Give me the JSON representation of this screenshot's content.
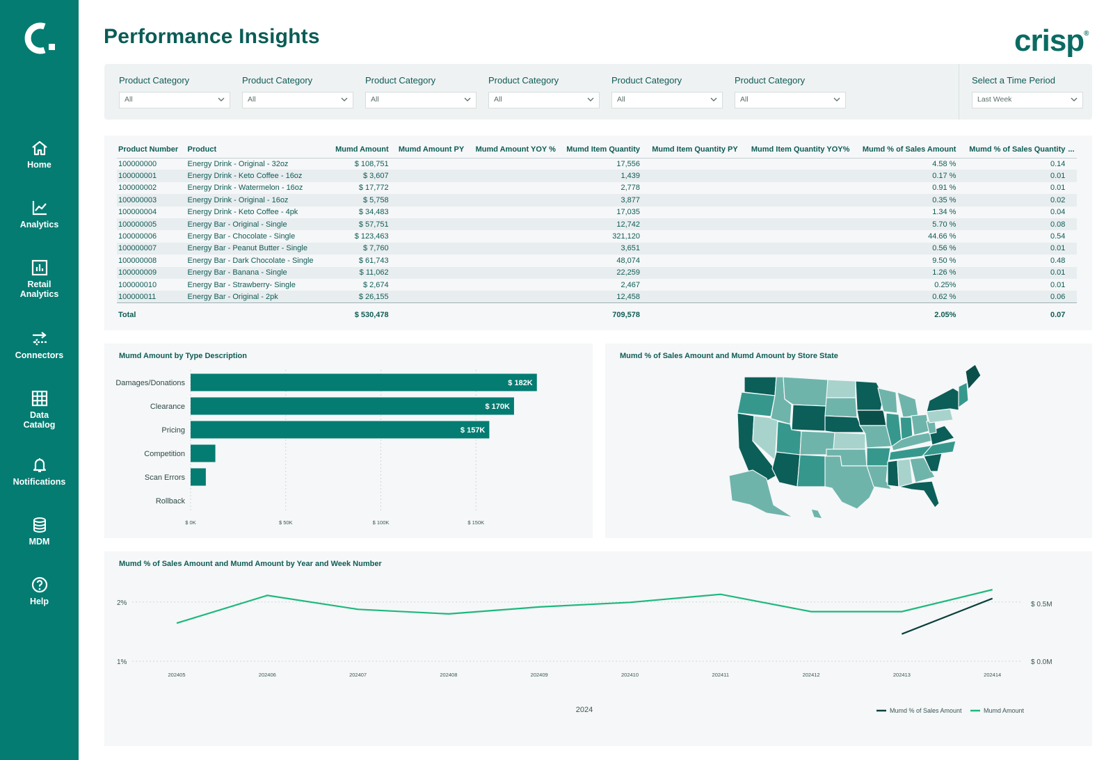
{
  "sidebar": {
    "items": [
      {
        "label": "Home"
      },
      {
        "label": "Analytics"
      },
      {
        "label": "Retail\nAnalytics"
      },
      {
        "label": "Connectors"
      },
      {
        "label": "Data\nCatalog"
      },
      {
        "label": "Notifications"
      },
      {
        "label": "MDM"
      },
      {
        "label": "Help"
      }
    ]
  },
  "header": {
    "title": "Performance Insights",
    "brand": "crisp",
    "brand_mark": "®"
  },
  "filters": [
    {
      "label": "Product Category",
      "value": "All"
    },
    {
      "label": "Product Category",
      "value": "All"
    },
    {
      "label": "Product Category",
      "value": "All"
    },
    {
      "label": "Product Category",
      "value": "All"
    },
    {
      "label": "Product Category",
      "value": "All"
    },
    {
      "label": "Product Category",
      "value": "All"
    }
  ],
  "time_filter": {
    "label": "Select a Time Period",
    "value": "Last Week"
  },
  "table": {
    "columns": [
      "Product Number",
      "Product",
      "Mumd Amount",
      "Mumd Amount PY",
      "Mumd Amount YOY %",
      "Mumd Item Quantity",
      "Mumd Item Quantity PY",
      "Mumd Item Quantity YOY%",
      "Mumd % of Sales Amount",
      "Mumd % of Sales Quantity",
      "..."
    ],
    "rows": [
      [
        "100000000",
        "Energy Drink - Original - 32oz",
        "$ 108,751",
        "",
        "",
        "17,556",
        "",
        "",
        "4.58 %",
        "0.14"
      ],
      [
        "100000001",
        "Energy Drink - Keto Coffee - 16oz",
        "$ 3,607",
        "",
        "",
        "1,439",
        "",
        "",
        "0.17 %",
        "0.01"
      ],
      [
        "100000002",
        "Energy Drink - Watermelon - 16oz",
        "$ 17,772",
        "",
        "",
        "2,778",
        "",
        "",
        "0.91 %",
        "0.01"
      ],
      [
        "100000003",
        "Energy Drink - Original - 16oz",
        "$ 5,758",
        "",
        "",
        "3,877",
        "",
        "",
        "0.35 %",
        "0.02"
      ],
      [
        "100000004",
        "Energy Drink - Keto Coffee - 4pk",
        "$ 34,483",
        "",
        "",
        "17,035",
        "",
        "",
        "1.34 %",
        "0.04"
      ],
      [
        "100000005",
        "Energy Bar - Original - Single",
        "$ 57,751",
        "",
        "",
        "12,742",
        "",
        "",
        "5.70 %",
        "0.08"
      ],
      [
        "100000006",
        "Energy Bar - Chocolate - Single",
        "$ 123,463",
        "",
        "",
        "321,120",
        "",
        "",
        "44.66 %",
        "0.54"
      ],
      [
        "100000007",
        "Energy Bar - Peanut Butter - Single",
        "$ 7,760",
        "",
        "",
        "3,651",
        "",
        "",
        "0.56 %",
        "0.01"
      ],
      [
        "100000008",
        "Energy Bar - Dark Chocolate - Single",
        "$ 61,743",
        "",
        "",
        "48,074",
        "",
        "",
        "9.50 %",
        "0.48"
      ],
      [
        "100000009",
        "Energy Bar - Banana - Single",
        "$ 11,062",
        "",
        "",
        "22,259",
        "",
        "",
        "1.26 %",
        "0.01"
      ],
      [
        "100000010",
        "Energy Bar - Strawberry- Single",
        "$ 2,674",
        "",
        "",
        "2,467",
        "",
        "",
        "0.25%",
        "0.01"
      ],
      [
        "100000011",
        "Energy Bar - Original - 2pk",
        "$ 26,155",
        "",
        "",
        "12,458",
        "",
        "",
        "0.62 %",
        "0.06"
      ]
    ],
    "total": {
      "label": "Total",
      "amount": "$ 530,478",
      "quantity": "709,578",
      "pct_amount": "2.05%",
      "pct_qty": "0.07"
    }
  },
  "map": {
    "title": "Mumd % of Sales Amount and Mumd Amount by Store State"
  },
  "colors": {
    "sidebar": "#047c72",
    "bar": "#047c72",
    "line_pct": "#0b3f3c",
    "line_amount": "#1db87c",
    "map_dark": "#0b5f58",
    "map_mid": "#36988d",
    "map_light": "#6fb4ab",
    "map_pale": "#a7d3cc"
  },
  "chart_data": [
    {
      "type": "bar",
      "orientation": "horizontal",
      "title": "Mumd Amount by Type Description",
      "categories": [
        "Damages/Donations",
        "Clearance",
        "Pricing",
        "Competition",
        "Scan Errors",
        "Rollback"
      ],
      "values": [
        182000,
        170000,
        157000,
        13000,
        8000,
        0
      ],
      "data_labels": [
        "$ 182K",
        "$ 170K",
        "$ 157K",
        "",
        "",
        ""
      ],
      "xlim": [
        0,
        200000
      ],
      "xticks": [
        0,
        50000,
        100000,
        150000
      ],
      "xtick_labels": [
        "$ 0K",
        "$ 50K",
        "$ 100K",
        "$ 150K"
      ],
      "grid": true
    },
    {
      "type": "line",
      "title": "Mumd % of Sales Amount and Mumd Amount by Year and Week Number",
      "categories": [
        "202405",
        "202406",
        "202407",
        "202408",
        "202409",
        "202410",
        "202411",
        "202412",
        "202413",
        "202414"
      ],
      "xlabel": "2024",
      "y_left": {
        "ticks": [
          1,
          2
        ],
        "tick_labels": [
          "1%",
          "2%"
        ],
        "range": [
          1,
          2.15
        ]
      },
      "y_right": {
        "ticks": [
          0,
          0.5
        ],
        "tick_labels": [
          "$ 0.0M",
          "$ 0.5M"
        ],
        "range": [
          0,
          0.59
        ]
      },
      "series": [
        {
          "name": "Mumd % of Sales Amount",
          "axis": "left",
          "color": "#0b3f3c",
          "values": [
            null,
            null,
            null,
            null,
            null,
            null,
            null,
            null,
            1.46,
            2.06
          ]
        },
        {
          "name": "Mumd Amount",
          "axis": "right",
          "color": "#1db87c",
          "values": [
            0.33,
            0.57,
            0.45,
            0.41,
            0.47,
            0.51,
            0.58,
            0.43,
            0.43,
            0.62
          ]
        }
      ],
      "legend": "bottom-right",
      "grid": true
    }
  ]
}
